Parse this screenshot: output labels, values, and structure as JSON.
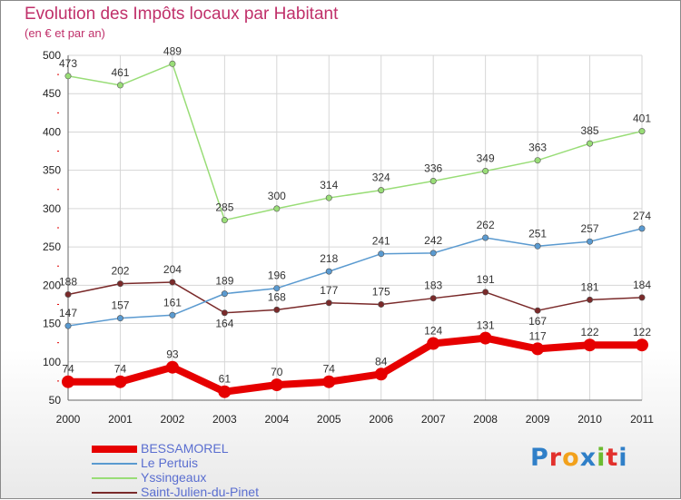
{
  "header": {
    "title": "Evolution des Impôts locaux par Habitant",
    "subtitle": "(en € et par an)"
  },
  "logo": {
    "letters": [
      "P",
      "r",
      "o",
      "x",
      "i",
      "t",
      "i"
    ],
    "colors": [
      "#2f7fc8",
      "#e2312d",
      "#f2a11c",
      "#2f7fc8",
      "#6cbb30",
      "#e2312d",
      "#2f7fc8"
    ]
  },
  "chart_data": {
    "type": "line",
    "title": "Evolution des Impôts locaux par Habitant",
    "subtitle": "(en € et par an)",
    "xlabel": "",
    "ylabel": "",
    "x": [
      "2000",
      "2001",
      "2002",
      "2003",
      "2004",
      "2005",
      "2006",
      "2007",
      "2008",
      "2009",
      "2010",
      "2011"
    ],
    "ylim": [
      50,
      500
    ],
    "yticks": [
      50,
      100,
      150,
      200,
      250,
      300,
      350,
      400,
      450,
      500
    ],
    "grid": true,
    "legend": "bottom-left",
    "series": [
      {
        "name": "BESSAMOREL",
        "color": "#e60000",
        "values": [
          74,
          74,
          93,
          61,
          70,
          74,
          84,
          124,
          131,
          117,
          122,
          122
        ]
      },
      {
        "name": "Le Pertuis",
        "color": "#5a9ad0",
        "values": [
          147,
          157,
          161,
          189,
          196,
          218,
          241,
          242,
          262,
          251,
          257,
          274
        ]
      },
      {
        "name": "Yssingeaux",
        "color": "#99dd77",
        "values": [
          473,
          461,
          489,
          285,
          300,
          314,
          324,
          336,
          349,
          363,
          385,
          401
        ]
      },
      {
        "name": "Saint-Julien-du-Pinet",
        "color": "#7a2a2a",
        "values": [
          188,
          202,
          204,
          164,
          168,
          177,
          175,
          183,
          191,
          167,
          181,
          184
        ]
      }
    ]
  }
}
